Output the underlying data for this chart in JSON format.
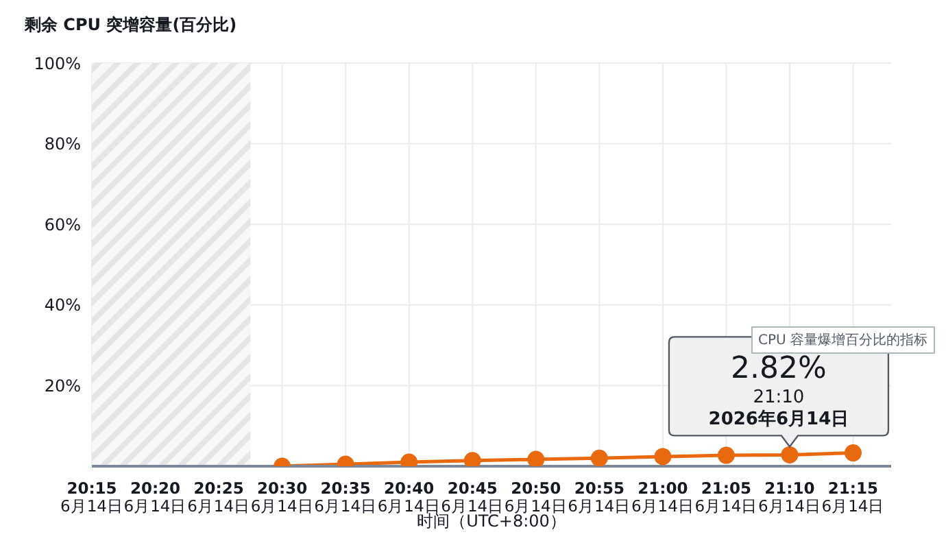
{
  "chart_data": {
    "type": "line",
    "title": "剩余 CPU 突增容量(百分比)",
    "xlabel": "时间（UTC+8:00）",
    "categories": [
      "20:15\n6月14日",
      "20:20\n6月14日",
      "20:25\n6月14日",
      "20:30\n6月14日",
      "20:35\n6月14日",
      "20:40\n6月14日",
      "20:45\n6月14日",
      "20:50\n6月14日",
      "20:55\n6月14日",
      "21:00\n6月14日",
      "21:05\n6月14日",
      "21:10\n6月14日",
      "21:15\n6月14日"
    ],
    "series": [
      {
        "color": "#e8690e",
        "values": [
          null,
          null,
          null,
          0,
          0.5,
          1.0,
          1.4,
          1.7,
          2.0,
          2.4,
          2.7,
          2.82,
          3.3
        ]
      }
    ],
    "ylim": [
      0,
      100
    ],
    "yticks": [
      {
        "value": 20,
        "label": "20%"
      },
      {
        "value": 40,
        "label": "40%"
      },
      {
        "value": 60,
        "label": "60%"
      },
      {
        "value": 80,
        "label": "80%"
      },
      {
        "value": 100,
        "label": "100%"
      }
    ],
    "bands": [
      {
        "axis": "x",
        "from": "20:15\n6月14日",
        "to": "20:25\n6月14日",
        "color": "#e3e5e7"
      }
    ],
    "annotations": [
      {
        "text": "2.82%",
        "x": "21:10\n6月14日",
        "y": 2.82
      },
      {
        "text": "21:10",
        "x": "21:10\n6月14日",
        "y": 2.82
      },
      {
        "text": "2026年6月14日",
        "x": "21:10\n6月14日",
        "y": 2.82
      },
      "CPU 容量爆增百分比的指标"
    ],
    "grid": true,
    "marker": "circle",
    "line_style": "solid",
    "legend": false
  }
}
